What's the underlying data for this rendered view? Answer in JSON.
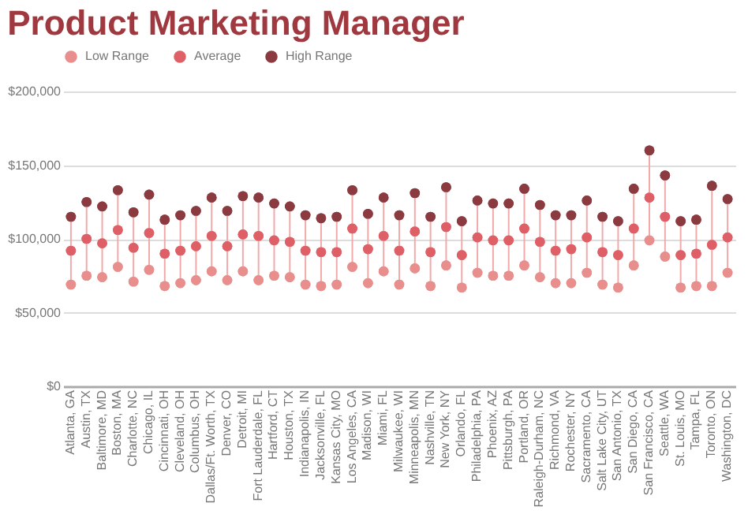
{
  "chart_data": {
    "type": "scatter",
    "title": "Product Marketing Manager",
    "categories": [
      "Atlanta, GA",
      "Austin, TX",
      "Baltimore, MD",
      "Boston, MA",
      "Charlotte, NC",
      "Chicago, IL",
      "Cincinnati, OH",
      "Cleveland, OH",
      "Columbus, OH",
      "Dallas/Ft. Worth, TX",
      "Denver, CO",
      "Detroit, MI",
      "Fort Lauderdale, FL",
      "Hartford, CT",
      "Houston, TX",
      "Indianapolis, IN",
      "Jacksonville, FL",
      "Kansas City, MO",
      "Los Angeles, CA",
      "Madison, WI",
      "Miami, FL",
      "Milwaukee, WI",
      "Minneapolis, MN",
      "Nashville, TN",
      "New York, NY",
      "Orlando, FL",
      "Philadelphia, PA",
      "Phoenix, AZ",
      "Pittsburgh, PA",
      "Portland, OR",
      "Raleigh-Durham, NC",
      "Richmond, VA",
      "Rochester, NY",
      "Sacramento, CA",
      "Salt Lake City, UT",
      "San Antonio, TX",
      "San Diego, CA",
      "San Francisco, CA",
      "Seattle, WA",
      "St. Louis, MO",
      "Tampa, FL",
      "Toronto, ON",
      "Washington, DC"
    ],
    "series": [
      {
        "name": "Low Range",
        "color": "#e88e8c",
        "values": [
          69000,
          75000,
          74000,
          81000,
          71000,
          79000,
          68000,
          70000,
          72000,
          78000,
          72000,
          78000,
          72000,
          75000,
          74000,
          69000,
          68000,
          69000,
          81000,
          70000,
          78000,
          69000,
          80000,
          68000,
          82000,
          67000,
          77000,
          75000,
          75000,
          82000,
          74000,
          70000,
          70000,
          77000,
          69000,
          67000,
          82000,
          99000,
          88000,
          67000,
          68000,
          68000,
          77000
        ]
      },
      {
        "name": "Average",
        "color": "#df5f66",
        "values": [
          92000,
          100000,
          97000,
          106000,
          94000,
          104000,
          90000,
          92000,
          95000,
          102000,
          95000,
          103000,
          102000,
          99000,
          98000,
          92000,
          91000,
          91000,
          107000,
          93000,
          102000,
          92000,
          105000,
          91000,
          108000,
          89000,
          101000,
          99000,
          99000,
          107000,
          98000,
          92000,
          93000,
          101000,
          91000,
          89000,
          107000,
          128000,
          115000,
          89000,
          90000,
          96000,
          101000
        ]
      },
      {
        "name": "High Range",
        "color": "#8b3a40",
        "values": [
          115000,
          125000,
          122000,
          133000,
          118000,
          130000,
          113000,
          116000,
          119000,
          128000,
          119000,
          129000,
          128000,
          124000,
          122000,
          116000,
          114000,
          115000,
          133000,
          117000,
          128000,
          116000,
          131000,
          115000,
          135000,
          112000,
          126000,
          124000,
          124000,
          134000,
          123000,
          116000,
          116000,
          126000,
          115000,
          112000,
          134000,
          160000,
          143000,
          112000,
          113000,
          136000,
          127000
        ]
      }
    ],
    "ylim": [
      0,
      200000
    ],
    "yticks": [
      {
        "value": 0,
        "label": "$0"
      },
      {
        "value": 50000,
        "label": "$50,000"
      },
      {
        "value": 100000,
        "label": "$100,000"
      },
      {
        "value": 150000,
        "label": "$150,000"
      },
      {
        "value": 200000,
        "label": "$200,000"
      }
    ],
    "grid": "y",
    "legend": "top",
    "marker": "circle"
  }
}
